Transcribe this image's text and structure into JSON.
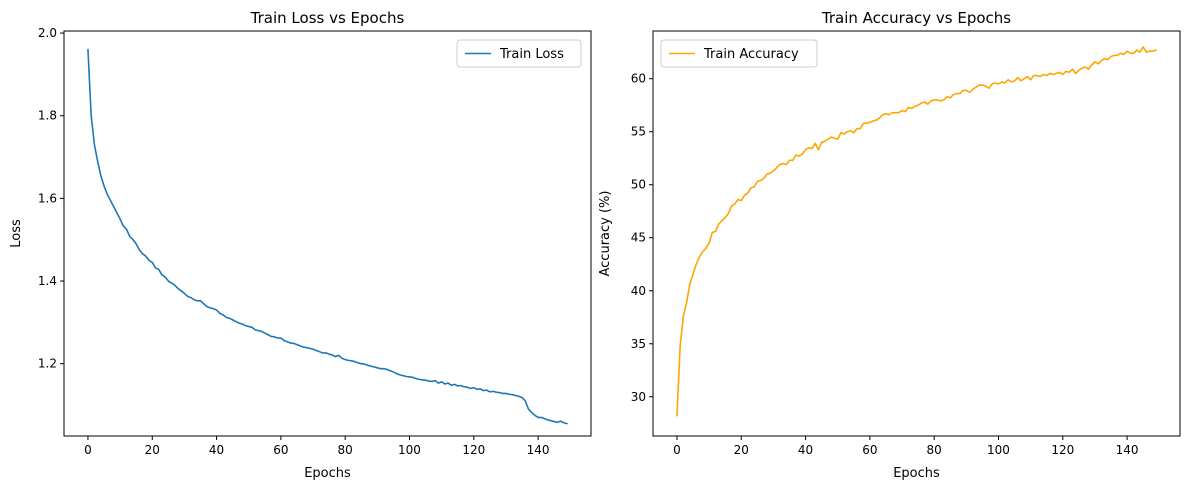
{
  "chart_data": [
    {
      "type": "line",
      "title": "Train Loss vs Epochs",
      "xlabel": "Epochs",
      "ylabel": "Loss",
      "xlim": [
        -7.45,
        156.45
      ],
      "ylim": [
        1.025,
        2.005
      ],
      "xticks": [
        0,
        20,
        40,
        60,
        80,
        100,
        120,
        140
      ],
      "yticks": [
        1.2,
        1.4,
        1.6,
        1.8,
        2.0
      ],
      "ytick_labels": [
        "1.2",
        "1.4",
        "1.6",
        "1.8",
        "2.0"
      ],
      "legend_position": "upper right",
      "grid": false,
      "series": [
        {
          "name": "Train Loss",
          "color": "#1f77b4",
          "x": [
            0,
            1,
            2,
            3,
            4,
            5,
            6,
            7,
            8,
            9,
            10,
            11,
            12,
            13,
            14,
            15,
            16,
            17,
            18,
            19,
            20,
            21,
            22,
            23,
            24,
            25,
            26,
            27,
            28,
            29,
            30,
            31,
            32,
            33,
            34,
            35,
            36,
            37,
            38,
            39,
            40,
            41,
            42,
            43,
            44,
            45,
            46,
            47,
            48,
            49,
            50,
            51,
            52,
            53,
            54,
            55,
            56,
            57,
            58,
            59,
            60,
            61,
            62,
            63,
            64,
            65,
            66,
            67,
            68,
            69,
            70,
            71,
            72,
            73,
            74,
            75,
            76,
            77,
            78,
            79,
            80,
            81,
            82,
            83,
            84,
            85,
            86,
            87,
            88,
            89,
            90,
            91,
            92,
            93,
            94,
            95,
            96,
            97,
            98,
            99,
            100,
            101,
            102,
            103,
            104,
            105,
            106,
            107,
            108,
            109,
            110,
            111,
            112,
            113,
            114,
            115,
            116,
            117,
            118,
            119,
            120,
            121,
            122,
            123,
            124,
            125,
            126,
            127,
            128,
            129,
            130,
            131,
            132,
            133,
            134,
            135,
            136,
            137,
            138,
            139,
            140,
            141,
            142,
            143,
            144,
            145,
            146,
            147,
            148,
            149
          ],
          "y": [
            1.96,
            1.8,
            1.73,
            1.69,
            1.655,
            1.63,
            1.61,
            1.595,
            1.58,
            1.565,
            1.55,
            1.533,
            1.525,
            1.508,
            1.5,
            1.49,
            1.475,
            1.466,
            1.46,
            1.45,
            1.445,
            1.432,
            1.428,
            1.415,
            1.41,
            1.4,
            1.395,
            1.39,
            1.382,
            1.376,
            1.37,
            1.363,
            1.36,
            1.355,
            1.352,
            1.352,
            1.345,
            1.338,
            1.335,
            1.333,
            1.33,
            1.322,
            1.318,
            1.312,
            1.31,
            1.306,
            1.302,
            1.298,
            1.296,
            1.292,
            1.29,
            1.288,
            1.282,
            1.28,
            1.278,
            1.274,
            1.27,
            1.266,
            1.265,
            1.262,
            1.262,
            1.256,
            1.253,
            1.25,
            1.249,
            1.246,
            1.243,
            1.24,
            1.239,
            1.237,
            1.235,
            1.232,
            1.229,
            1.226,
            1.226,
            1.223,
            1.221,
            1.217,
            1.22,
            1.213,
            1.21,
            1.208,
            1.207,
            1.205,
            1.202,
            1.2,
            1.199,
            1.196,
            1.194,
            1.192,
            1.19,
            1.188,
            1.188,
            1.186,
            1.183,
            1.18,
            1.176,
            1.173,
            1.171,
            1.169,
            1.168,
            1.167,
            1.164,
            1.162,
            1.161,
            1.16,
            1.158,
            1.157,
            1.159,
            1.153,
            1.156,
            1.151,
            1.153,
            1.148,
            1.15,
            1.146,
            1.147,
            1.144,
            1.143,
            1.14,
            1.142,
            1.138,
            1.139,
            1.135,
            1.136,
            1.132,
            1.133,
            1.131,
            1.13,
            1.128,
            1.128,
            1.126,
            1.125,
            1.123,
            1.121,
            1.118,
            1.11,
            1.09,
            1.082,
            1.075,
            1.07,
            1.07,
            1.067,
            1.064,
            1.062,
            1.06,
            1.058,
            1.061,
            1.057,
            1.055
          ]
        }
      ]
    },
    {
      "type": "line",
      "title": "Train Accuracy vs Epochs",
      "xlabel": "Epochs",
      "ylabel": "Accuracy (%)",
      "xlim": [
        -7.45,
        156.45
      ],
      "ylim": [
        26.3,
        64.5
      ],
      "xticks": [
        0,
        20,
        40,
        60,
        80,
        100,
        120,
        140
      ],
      "yticks": [
        30,
        35,
        40,
        45,
        50,
        55,
        60
      ],
      "ytick_labels": [
        "30",
        "35",
        "40",
        "45",
        "50",
        "55",
        "60"
      ],
      "legend_position": "upper left",
      "grid": false,
      "series": [
        {
          "name": "Train Accuracy",
          "color": "#ffa500",
          "x": [
            0,
            1,
            2,
            3,
            4,
            5,
            6,
            7,
            8,
            9,
            10,
            11,
            12,
            13,
            14,
            15,
            16,
            17,
            18,
            19,
            20,
            21,
            22,
            23,
            24,
            25,
            26,
            27,
            28,
            29,
            30,
            31,
            32,
            33,
            34,
            35,
            36,
            37,
            38,
            39,
            40,
            41,
            42,
            43,
            44,
            45,
            46,
            47,
            48,
            49,
            50,
            51,
            52,
            53,
            54,
            55,
            56,
            57,
            58,
            59,
            60,
            61,
            62,
            63,
            64,
            65,
            66,
            67,
            68,
            69,
            70,
            71,
            72,
            73,
            74,
            75,
            76,
            77,
            78,
            79,
            80,
            81,
            82,
            83,
            84,
            85,
            86,
            87,
            88,
            89,
            90,
            91,
            92,
            93,
            94,
            95,
            96,
            97,
            98,
            99,
            100,
            101,
            102,
            103,
            104,
            105,
            106,
            107,
            108,
            109,
            110,
            111,
            112,
            113,
            114,
            115,
            116,
            117,
            118,
            119,
            120,
            121,
            122,
            123,
            124,
            125,
            126,
            127,
            128,
            129,
            130,
            131,
            132,
            133,
            134,
            135,
            136,
            137,
            138,
            139,
            140,
            141,
            142,
            143,
            144,
            145,
            146,
            147,
            148,
            149
          ],
          "y": [
            28.2,
            34.8,
            37.6,
            38.9,
            40.6,
            41.6,
            42.5,
            43.2,
            43.7,
            44.0,
            44.5,
            45.5,
            45.6,
            46.3,
            46.6,
            46.9,
            47.3,
            48.0,
            48.2,
            48.6,
            48.5,
            49.0,
            49.2,
            49.7,
            49.8,
            50.3,
            50.4,
            50.6,
            51.0,
            51.1,
            51.3,
            51.6,
            51.9,
            52.0,
            51.9,
            52.3,
            52.3,
            52.8,
            52.7,
            52.9,
            53.3,
            53.5,
            53.4,
            53.9,
            53.3,
            54.0,
            54.1,
            54.3,
            54.5,
            54.4,
            54.3,
            54.9,
            54.8,
            55.0,
            55.1,
            54.9,
            55.3,
            55.3,
            55.8,
            55.8,
            55.9,
            56.0,
            56.1,
            56.3,
            56.6,
            56.7,
            56.6,
            56.8,
            56.8,
            56.8,
            57.0,
            56.9,
            57.3,
            57.2,
            57.4,
            57.5,
            57.7,
            57.8,
            57.6,
            57.9,
            58.0,
            58.0,
            57.9,
            58.0,
            58.3,
            58.2,
            58.5,
            58.6,
            58.6,
            58.9,
            58.9,
            58.7,
            59.0,
            59.2,
            59.4,
            59.4,
            59.3,
            59.1,
            59.5,
            59.6,
            59.5,
            59.7,
            59.6,
            59.9,
            59.7,
            59.8,
            60.1,
            59.8,
            60.0,
            60.2,
            59.9,
            60.3,
            60.3,
            60.2,
            60.4,
            60.3,
            60.5,
            60.4,
            60.5,
            60.6,
            60.4,
            60.7,
            60.6,
            60.9,
            60.5,
            60.8,
            61.0,
            61.1,
            60.9,
            61.3,
            61.6,
            61.4,
            61.7,
            61.9,
            61.8,
            62.1,
            62.2,
            62.2,
            62.4,
            62.3,
            62.6,
            62.4,
            62.4,
            62.7,
            62.5,
            63.0,
            62.5,
            62.6,
            62.6,
            62.7
          ]
        }
      ]
    }
  ]
}
